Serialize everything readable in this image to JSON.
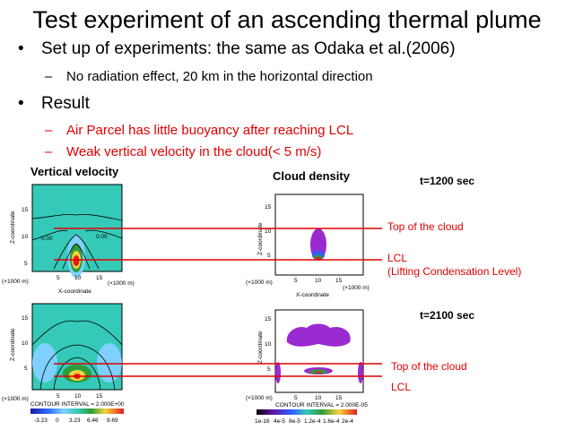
{
  "title": "Test experiment of an ascending thermal plume",
  "bullets": [
    {
      "text": "Set up of experiments: the same as Odaka et al.(2006)",
      "subs": [
        "No radiation effect, 20 km in the horizontal direction"
      ]
    },
    {
      "text": "Result",
      "subs": [
        "Air Parcel has little buoyancy after reaching LCL",
        "Weak vertical velocity in the cloud(< 5 m/s)"
      ]
    }
  ],
  "bullet_glyph": "•",
  "dash_glyph": "–",
  "panels": {
    "vertical_velocity_title": "Vertical velocity",
    "cloud_density_title": "Cloud density"
  },
  "times": [
    "t=1200 sec",
    "t=2100 sec"
  ],
  "annotations": {
    "top_cloud": "Top of the cloud",
    "lcl": "LCL",
    "lcl_full": "(Lifting Condensation Level)"
  },
  "axes": {
    "z_label": "Z-coordinate",
    "x_label": "X-coordinate",
    "unit": "(×1000 m)",
    "x_ticks": [
      "5",
      "10",
      "15"
    ],
    "z_ticks": [
      "5",
      "10",
      "15"
    ]
  },
  "contour_labels": {
    "zero": "0.00"
  },
  "colorbars": {
    "velocity_interval": "CONTOUR INTERVAL = 2.000E+00",
    "cloud_interval": "CONTOUR INTERVAL = 2.000E-05",
    "velocity_ticks": [
      "-3.23",
      "0",
      "3.23",
      "6.46",
      "9.69"
    ],
    "cloud_ticks": [
      "1e-16",
      "4e-5",
      "8e-5",
      "1.2e-4",
      "1.6e-4",
      "2e-4"
    ]
  },
  "colors": {
    "annotation_red": "#e00000",
    "velocity_background": "#35c9b8",
    "cloud_purple": "#9a2bd0"
  }
}
